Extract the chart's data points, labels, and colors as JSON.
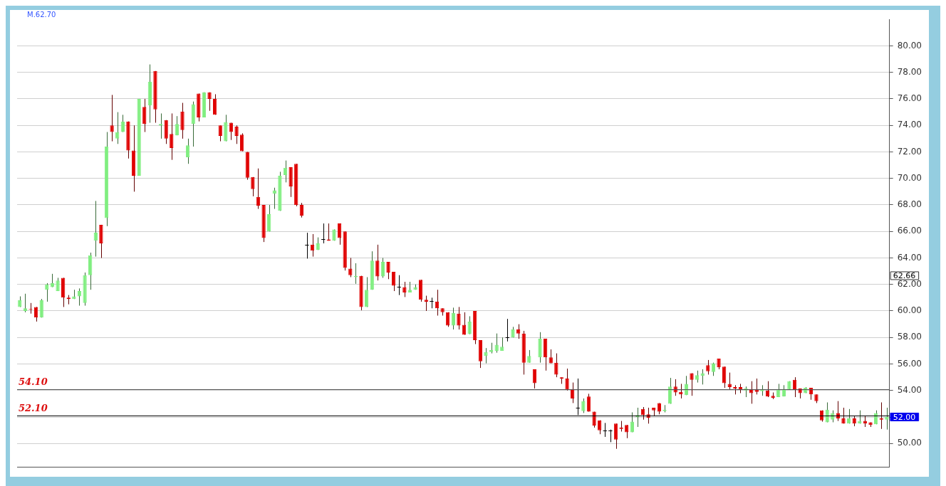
{
  "chart_data": {
    "type": "candlestick",
    "categories": [
      null,
      null,
      null,
      null,
      null,
      null,
      null,
      null,
      null,
      null,
      null,
      null,
      null,
      null,
      null,
      null,
      null,
      null,
      null,
      null,
      null,
      null,
      null,
      null,
      null,
      null,
      null,
      null,
      null,
      null,
      null,
      null,
      null,
      null,
      null,
      null,
      null,
      null,
      null,
      null,
      null,
      null,
      null,
      null,
      null,
      null,
      null,
      null,
      null,
      null,
      null,
      null,
      null,
      null,
      null,
      null,
      null,
      null,
      null,
      null,
      null,
      null,
      null,
      null,
      null,
      null,
      null,
      null,
      null,
      null,
      null,
      null,
      null,
      null,
      null,
      null,
      null,
      null,
      null,
      null,
      null,
      null,
      null,
      null,
      null,
      null,
      null,
      null,
      null,
      null,
      null,
      null,
      null,
      null,
      null,
      null,
      null,
      null,
      null,
      null,
      null,
      null,
      null,
      null,
      null,
      null,
      null,
      null,
      null,
      null,
      null,
      null,
      null,
      null,
      null,
      null,
      null,
      null,
      null,
      null,
      null,
      null,
      null,
      null,
      null,
      null,
      null,
      null,
      null,
      null,
      null,
      null,
      null,
      null,
      null,
      null,
      null,
      null,
      null,
      null,
      null,
      null,
      null,
      null,
      null,
      null,
      null,
      null,
      null,
      null,
      null,
      null,
      null,
      null,
      null,
      null,
      null,
      null,
      null,
      null,
      null
    ],
    "ohlc": [
      [
        60.3,
        61.1,
        60.3,
        60.8
      ],
      [
        60.0,
        61.3,
        59.9,
        60.2
      ],
      [
        60.15,
        60.6,
        59.8,
        60.1
      ],
      [
        60.3,
        60.3,
        59.2,
        59.5
      ],
      [
        59.5,
        60.9,
        59.5,
        60.8
      ],
      [
        61.6,
        62.1,
        60.7,
        62.0
      ],
      [
        61.8,
        62.8,
        61.8,
        62.1
      ],
      [
        61.5,
        62.5,
        61.5,
        62.3
      ],
      [
        62.5,
        62.5,
        60.3,
        61.0
      ],
      [
        61.0,
        61.2,
        60.5,
        60.9
      ],
      [
        60.9,
        61.6,
        60.9,
        61.1
      ],
      [
        61.1,
        61.7,
        60.4,
        61.5
      ],
      [
        60.6,
        62.9,
        60.4,
        62.7
      ],
      [
        62.7,
        64.4,
        61.6,
        64.2
      ],
      [
        65.3,
        68.3,
        64.1,
        65.9
      ],
      [
        66.5,
        66.5,
        64.0,
        65.1
      ],
      [
        67.0,
        73.5,
        66.4,
        72.4
      ],
      [
        74.0,
        76.3,
        72.8,
        73.5
      ],
      [
        73.0,
        75.0,
        72.6,
        73.5
      ],
      [
        73.5,
        74.8,
        73.5,
        74.3
      ],
      [
        74.3,
        74.3,
        71.5,
        72.1
      ],
      [
        72.1,
        74.0,
        69.0,
        70.2
      ],
      [
        70.2,
        76.0,
        70.2,
        76.0
      ],
      [
        75.4,
        76.0,
        73.5,
        74.1
      ],
      [
        75.5,
        78.6,
        74.2,
        77.3
      ],
      [
        78.1,
        78.1,
        74.2,
        75.2
      ],
      [
        74.0,
        74.9,
        73.0,
        74.1
      ],
      [
        74.4,
        74.4,
        72.6,
        73.0
      ],
      [
        73.35,
        74.9,
        71.4,
        72.3
      ],
      [
        73.25,
        74.7,
        73.25,
        74.1
      ],
      [
        75.05,
        75.7,
        73.0,
        73.65
      ],
      [
        71.6,
        73.0,
        71.1,
        72.5
      ],
      [
        74.1,
        75.8,
        72.4,
        75.6
      ],
      [
        76.4,
        76.4,
        74.3,
        74.6
      ],
      [
        74.6,
        76.5,
        74.6,
        76.5
      ],
      [
        76.5,
        76.5,
        75.1,
        76.0
      ],
      [
        76.0,
        76.35,
        74.8,
        74.8
      ],
      [
        74.0,
        74.0,
        72.8,
        73.2
      ],
      [
        72.8,
        74.8,
        72.8,
        74.25
      ],
      [
        74.2,
        74.2,
        72.9,
        73.5
      ],
      [
        73.9,
        74.0,
        72.6,
        73.2
      ],
      [
        73.3,
        73.4,
        72.05,
        72.05
      ],
      [
        72.0,
        72.0,
        69.9,
        70.05
      ],
      [
        70.1,
        70.1,
        68.65,
        69.2
      ],
      [
        68.6,
        70.75,
        67.7,
        67.95
      ],
      [
        68.0,
        68.0,
        65.2,
        65.5
      ],
      [
        66.0,
        68.0,
        66.0,
        67.3
      ],
      [
        68.85,
        69.3,
        67.7,
        69.1
      ],
      [
        67.55,
        70.5,
        67.55,
        70.2
      ],
      [
        70.25,
        71.35,
        69.7,
        70.8
      ],
      [
        70.85,
        70.85,
        68.6,
        69.4
      ],
      [
        71.1,
        71.1,
        67.9,
        67.98
      ],
      [
        68.0,
        68.15,
        67.05,
        67.2
      ],
      [
        65.0,
        65.9,
        63.95,
        65.0
      ],
      [
        65.0,
        65.8,
        64.1,
        64.55
      ],
      [
        64.6,
        65.55,
        64.6,
        65.1
      ],
      [
        65.4,
        66.6,
        65.1,
        65.4
      ],
      [
        65.4,
        66.6,
        65.3,
        65.3
      ],
      [
        65.3,
        66.15,
        65.3,
        66.15
      ],
      [
        66.6,
        66.6,
        65.0,
        65.5
      ],
      [
        66.0,
        66.0,
        63.05,
        63.25
      ],
      [
        63.2,
        64.0,
        62.55,
        62.7
      ],
      [
        62.55,
        63.6,
        62.05,
        62.65
      ],
      [
        62.65,
        62.65,
        60.05,
        60.3
      ],
      [
        60.3,
        62.55,
        60.3,
        61.6
      ],
      [
        61.6,
        64.5,
        61.6,
        63.8
      ],
      [
        63.8,
        65.0,
        62.3,
        62.6
      ],
      [
        62.6,
        64.0,
        62.5,
        63.7
      ],
      [
        63.7,
        63.7,
        62.4,
        62.9
      ],
      [
        62.95,
        62.95,
        61.5,
        61.9
      ],
      [
        61.8,
        62.7,
        61.2,
        61.8
      ],
      [
        61.8,
        62.2,
        61.05,
        61.4
      ],
      [
        61.4,
        62.2,
        61.4,
        61.6
      ],
      [
        61.6,
        62.0,
        61.6,
        61.8
      ],
      [
        62.35,
        62.35,
        60.7,
        60.85
      ],
      [
        60.85,
        61.15,
        60.0,
        60.7
      ],
      [
        60.75,
        61.0,
        60.2,
        60.75
      ],
      [
        60.7,
        61.6,
        59.65,
        60.2
      ],
      [
        60.2,
        60.2,
        59.65,
        59.9
      ],
      [
        59.9,
        59.9,
        58.8,
        58.9
      ],
      [
        58.9,
        60.25,
        58.6,
        59.85
      ],
      [
        59.8,
        60.3,
        58.6,
        58.9
      ],
      [
        58.95,
        59.9,
        58.2,
        58.2
      ],
      [
        58.25,
        59.6,
        58.25,
        59.2
      ],
      [
        60.0,
        60.0,
        57.5,
        57.8
      ],
      [
        57.8,
        57.8,
        55.7,
        56.2
      ],
      [
        56.6,
        57.2,
        56.05,
        56.9
      ],
      [
        56.9,
        57.6,
        56.8,
        57.05
      ],
      [
        57.0,
        58.3,
        56.85,
        57.45
      ],
      [
        57.0,
        58.0,
        57.0,
        57.3
      ],
      [
        58.0,
        59.4,
        57.7,
        58.0
      ],
      [
        58.0,
        58.8,
        58.0,
        58.6
      ],
      [
        58.6,
        59.0,
        57.9,
        58.3
      ],
      [
        58.3,
        58.5,
        55.2,
        56.1
      ],
      [
        56.1,
        57.05,
        56.1,
        56.6
      ],
      [
        55.6,
        55.6,
        54.15,
        54.55
      ],
      [
        56.5,
        58.4,
        56.1,
        57.9
      ],
      [
        57.9,
        57.9,
        55.5,
        56.5
      ],
      [
        56.5,
        57.1,
        56.05,
        56.05
      ],
      [
        56.1,
        56.8,
        55.0,
        55.2
      ],
      [
        55.0,
        55.0,
        54.5,
        54.9
      ],
      [
        54.9,
        55.65,
        54.0,
        54.05
      ],
      [
        54.1,
        54.6,
        53.05,
        53.4
      ],
      [
        52.7,
        54.9,
        52.15,
        52.7
      ],
      [
        52.45,
        53.4,
        52.3,
        53.2
      ],
      [
        53.55,
        53.75,
        52.4,
        52.4
      ],
      [
        52.4,
        52.4,
        51.2,
        51.35
      ],
      [
        51.75,
        51.75,
        50.7,
        51.0
      ],
      [
        51.0,
        51.55,
        50.5,
        51.0
      ],
      [
        51.0,
        51.05,
        50.1,
        51.0
      ],
      [
        51.5,
        51.5,
        49.6,
        50.3
      ],
      [
        51.2,
        51.7,
        50.9,
        51.1
      ],
      [
        51.4,
        51.4,
        50.4,
        50.85
      ],
      [
        50.85,
        52.35,
        50.85,
        51.65
      ],
      [
        52.0,
        52.7,
        51.25,
        52.15
      ],
      [
        52.6,
        52.75,
        51.8,
        52.15
      ],
      [
        52.2,
        52.7,
        51.5,
        51.95
      ],
      [
        52.7,
        52.7,
        52.05,
        52.5
      ],
      [
        53.05,
        53.05,
        52.2,
        52.4
      ],
      [
        52.45,
        52.9,
        52.35,
        52.55
      ],
      [
        53.0,
        54.95,
        53.0,
        54.3
      ],
      [
        54.3,
        54.85,
        53.6,
        53.85
      ],
      [
        53.9,
        54.5,
        53.4,
        53.7
      ],
      [
        53.65,
        55.1,
        53.65,
        54.5
      ],
      [
        55.3,
        55.3,
        53.6,
        54.8
      ],
      [
        54.8,
        55.5,
        54.6,
        55.15
      ],
      [
        55.1,
        55.6,
        54.45,
        55.3
      ],
      [
        55.9,
        56.3,
        55.2,
        55.45
      ],
      [
        55.4,
        56.1,
        55.1,
        56.05
      ],
      [
        56.4,
        56.4,
        55.6,
        55.75
      ],
      [
        55.8,
        55.8,
        54.2,
        54.55
      ],
      [
        54.5,
        55.35,
        54.1,
        54.25
      ],
      [
        54.25,
        54.4,
        53.7,
        54.15
      ],
      [
        54.25,
        54.5,
        53.8,
        54.05
      ],
      [
        54.0,
        54.3,
        53.5,
        54.15
      ],
      [
        54.1,
        54.7,
        53.0,
        53.8
      ],
      [
        54.05,
        54.9,
        53.7,
        53.9
      ],
      [
        53.95,
        54.4,
        53.6,
        54.05
      ],
      [
        54.0,
        54.7,
        53.5,
        53.55
      ],
      [
        53.6,
        53.85,
        53.35,
        53.45
      ],
      [
        53.5,
        54.5,
        53.5,
        54.05
      ],
      [
        53.55,
        54.4,
        53.55,
        54.1
      ],
      [
        54.05,
        54.7,
        54.05,
        54.7
      ],
      [
        54.8,
        55.0,
        53.5,
        54.1
      ],
      [
        54.15,
        54.15,
        53.4,
        53.8
      ],
      [
        53.8,
        54.25,
        53.8,
        54.2
      ],
      [
        54.2,
        54.2,
        53.3,
        53.7
      ],
      [
        53.7,
        53.7,
        53.05,
        53.2
      ],
      [
        52.5,
        52.5,
        51.65,
        51.75
      ],
      [
        51.6,
        53.1,
        51.6,
        52.55
      ],
      [
        51.8,
        52.5,
        51.6,
        52.3
      ],
      [
        52.3,
        53.2,
        51.7,
        51.9
      ],
      [
        51.9,
        52.7,
        51.5,
        51.5
      ],
      [
        51.5,
        52.6,
        51.5,
        51.9
      ],
      [
        51.9,
        52.05,
        51.3,
        51.5
      ],
      [
        51.5,
        52.5,
        51.5,
        51.7
      ],
      [
        51.7,
        52.1,
        51.25,
        51.5
      ],
      [
        51.6,
        51.6,
        51.25,
        51.4
      ],
      [
        51.45,
        52.5,
        51.45,
        52.3
      ],
      [
        51.9,
        53.1,
        51.1,
        51.8
      ],
      [
        51.8,
        52.7,
        51.05,
        52.0
      ]
    ],
    "colors": [
      "#80ee80",
      "#80ee80",
      "#e00000",
      "#e00000",
      "#80ee80",
      "#80ee80",
      "#80ee80",
      "#80ee80",
      "#e00000",
      "#e00000",
      "#80ee80",
      "#80ee80",
      "#80ee80",
      "#80ee80",
      "#80ee80",
      "#e00000",
      "#80ee80",
      "#e00000",
      "#80ee80",
      "#80ee80",
      "#e00000",
      "#e00000",
      "#80ee80",
      "#e00000",
      "#80ee80",
      "#e00000",
      "#80ee80",
      "#e00000",
      "#e00000",
      "#80ee80",
      "#e00000",
      "#80ee80",
      "#80ee80",
      "#e00000",
      "#80ee80",
      "#e00000",
      "#e00000",
      "#e00000",
      "#80ee80",
      "#e00000",
      "#e00000",
      "#e00000",
      "#e00000",
      "#e00000",
      "#e00000",
      "#e00000",
      "#80ee80",
      "#80ee80",
      "#80ee80",
      "#80ee80",
      "#e00000",
      "#e00000",
      "#e00000",
      "#000000",
      "#e00000",
      "#80ee80",
      "#000000",
      "#e00000",
      "#80ee80",
      "#e00000",
      "#e00000",
      "#e00000",
      "#80ee80",
      "#e00000",
      "#80ee80",
      "#80ee80",
      "#e00000",
      "#80ee80",
      "#e00000",
      "#e00000",
      "#000000",
      "#e00000",
      "#80ee80",
      "#80ee80",
      "#e00000",
      "#e00000",
      "#000000",
      "#e00000",
      "#e00000",
      "#e00000",
      "#80ee80",
      "#e00000",
      "#e00000",
      "#80ee80",
      "#e00000",
      "#e00000",
      "#80ee80",
      "#80ee80",
      "#80ee80",
      "#80ee80",
      "#000000",
      "#80ee80",
      "#e00000",
      "#e00000",
      "#80ee80",
      "#e00000",
      "#80ee80",
      "#e00000",
      "#e00000",
      "#e00000",
      "#e00000",
      "#e00000",
      "#e00000",
      "#000000",
      "#80ee80",
      "#e00000",
      "#e00000",
      "#e00000",
      "#000000",
      "#000000",
      "#e00000",
      "#e00000",
      "#e00000",
      "#80ee80",
      "#80ee80",
      "#e00000",
      "#e00000",
      "#e00000",
      "#e00000",
      "#80ee80",
      "#80ee80",
      "#e00000",
      "#e00000",
      "#80ee80",
      "#e00000",
      "#80ee80",
      "#80ee80",
      "#e00000",
      "#80ee80",
      "#e00000",
      "#e00000",
      "#e00000",
      "#e00000",
      "#e00000",
      "#80ee80",
      "#e00000",
      "#e00000",
      "#80ee80",
      "#e00000",
      "#e00000",
      "#80ee80",
      "#80ee80",
      "#80ee80",
      "#e00000",
      "#e00000",
      "#80ee80",
      "#e00000",
      "#e00000",
      "#e00000",
      "#80ee80",
      "#80ee80",
      "#e00000",
      "#e00000",
      "#80ee80",
      "#e00000",
      "#80ee80",
      "#e00000",
      "#e00000",
      "#80ee80",
      "#e00000",
      "#80ee80"
    ],
    "ylim": [
      48.2,
      82
    ],
    "yticks": [
      {
        "value": 50,
        "label": "50.00"
      },
      {
        "value": 52,
        "label": null
      },
      {
        "value": 54,
        "label": "54.00"
      },
      {
        "value": 56,
        "label": "56.00"
      },
      {
        "value": 58,
        "label": "58.00"
      },
      {
        "value": 60,
        "label": "60.00"
      },
      {
        "value": 62,
        "label": "62.00"
      },
      {
        "value": 64,
        "label": "64.00"
      },
      {
        "value": 66,
        "label": "66.00"
      },
      {
        "value": 68,
        "label": "68.00"
      },
      {
        "value": 70,
        "label": "70.00"
      },
      {
        "value": 72,
        "label": "72.00"
      },
      {
        "value": 74,
        "label": "74.00"
      },
      {
        "value": 76,
        "label": "76.00"
      },
      {
        "value": 78,
        "label": "78.00"
      },
      {
        "value": 80,
        "label": "80.00"
      }
    ],
    "grid": "y",
    "legend": false,
    "tick_labels": "y",
    "ref_lines": [
      {
        "axis": "y",
        "value": 54.1,
        "label": "54.10",
        "color": "#555555"
      },
      {
        "axis": "y",
        "value": 52.1,
        "label": "52.10",
        "color": "#000000"
      }
    ],
    "annotations": [
      "M.62.70",
      {
        "text": "62.66",
        "y": 62.66
      },
      {
        "text": "52.00",
        "y": 52
      }
    ]
  }
}
